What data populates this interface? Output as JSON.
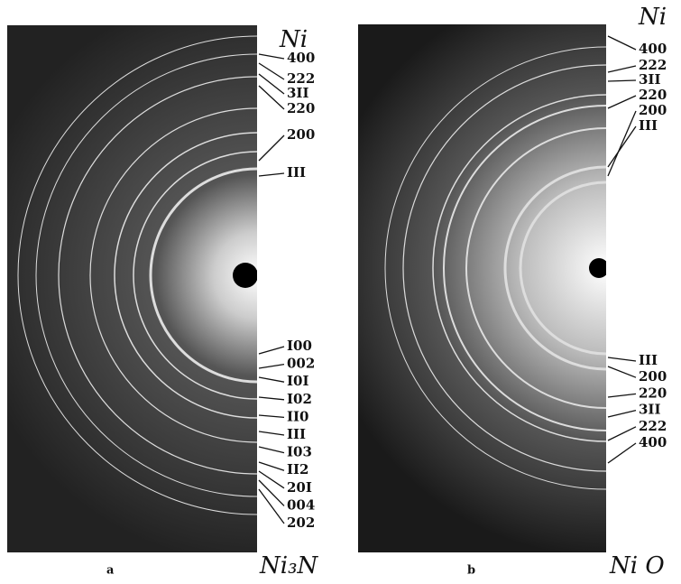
{
  "panels": [
    {
      "phase_label": "Ni",
      "top_labels": [
        "400",
        "222",
        "3II",
        "220",
        "200",
        "III"
      ],
      "bottom_labels": [
        "I00",
        "002",
        "I0I",
        "I02",
        "II0",
        "III",
        "I03",
        "II2",
        "20I",
        "004",
        "202"
      ],
      "caption": "a",
      "compound": "Ni₃N"
    },
    {
      "phase_label": "Ni",
      "top_labels": [
        "400",
        "222",
        "3II",
        "220",
        "200",
        "III"
      ],
      "bottom_labels": [
        "III",
        "200",
        "220",
        "3II",
        "222",
        "400"
      ],
      "caption": "b",
      "compound": "Ni O"
    }
  ]
}
